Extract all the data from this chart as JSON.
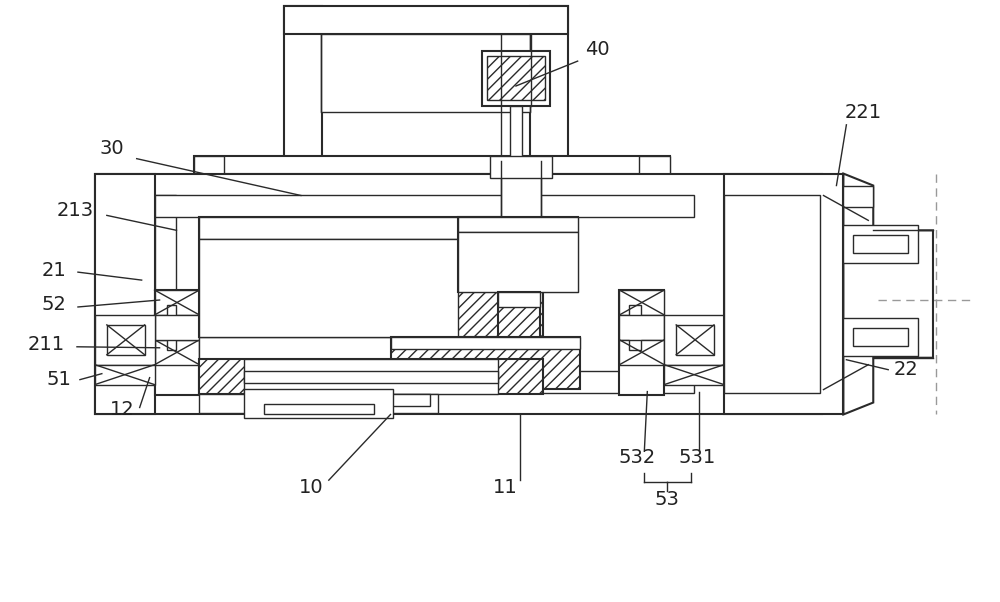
{
  "bg_color": "#ffffff",
  "lc": "#2a2a2a",
  "lw": 1.0,
  "lw2": 1.5,
  "fig_w": 10.0,
  "fig_h": 6.02,
  "dpi": 100
}
